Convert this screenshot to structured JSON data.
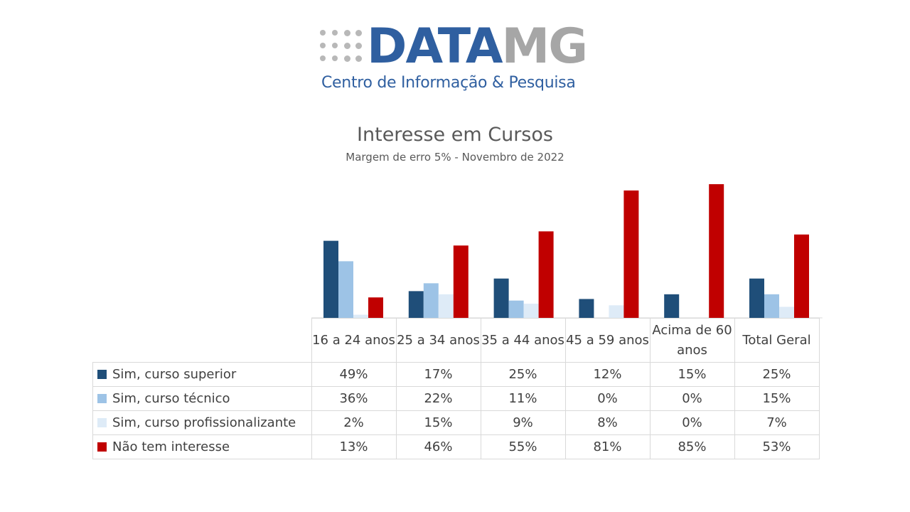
{
  "logo": {
    "word_data": "DATA",
    "word_mg": "MG",
    "subtitle": "Centro de Informação & Pesquisa"
  },
  "colors": {
    "superior": "#1f4e79",
    "tecnico": "#9dc3e6",
    "profissionalizante": "#deebf7",
    "nao": "#c00000"
  },
  "chart_data": {
    "type": "bar",
    "title": "Interesse em Cursos",
    "subtitle": "Margem de erro 5% - Novembro de 2022",
    "categories": [
      "16 a 24 anos",
      "25 a 34 anos",
      "35 a 44 anos",
      "45 a 59 anos",
      "Acima de 60 anos",
      "Total Geral"
    ],
    "series": [
      {
        "name": "Sim, curso superior",
        "color": "#1f4e79",
        "values": [
          49,
          17,
          25,
          12,
          15,
          25
        ],
        "labels": [
          "49%",
          "17%",
          "25%",
          "12%",
          "15%",
          "25%"
        ]
      },
      {
        "name": "Sim, curso técnico",
        "color": "#9dc3e6",
        "values": [
          36,
          22,
          11,
          0,
          0,
          15
        ],
        "labels": [
          "36%",
          "22%",
          "11%",
          "0%",
          "0%",
          "15%"
        ]
      },
      {
        "name": "Sim, curso profissionalizante",
        "color": "#deebf7",
        "values": [
          2,
          15,
          9,
          8,
          0,
          7
        ],
        "labels": [
          "2%",
          "15%",
          "9%",
          "8%",
          "0%",
          "7%"
        ]
      },
      {
        "name": "Não tem interesse",
        "color": "#c00000",
        "values": [
          13,
          46,
          55,
          81,
          85,
          53
        ],
        "labels": [
          "13%",
          "46%",
          "55%",
          "81%",
          "85%",
          "53%"
        ]
      }
    ],
    "ylim": [
      0,
      85
    ],
    "grid": false,
    "legend": "data-table"
  }
}
